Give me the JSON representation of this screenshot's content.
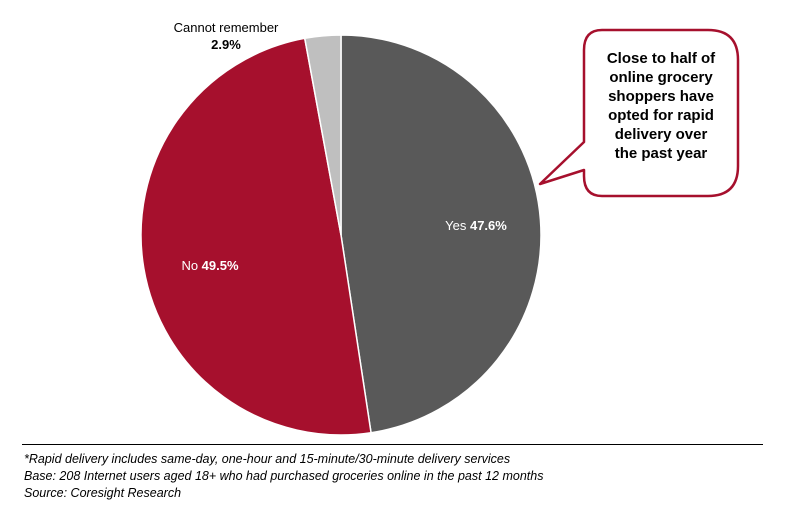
{
  "chart_data": {
    "type": "pie",
    "title": "",
    "slices": [
      {
        "name": "Yes",
        "value": 47.6,
        "value_label": "47.6%",
        "color": "#595959"
      },
      {
        "name": "No",
        "value": 49.5,
        "value_label": "49.5%",
        "color": "#A6102D"
      },
      {
        "name": "Cannot remember",
        "value": 2.9,
        "value_label": "2.9%",
        "color": "#BFBFBF"
      }
    ],
    "start": "12 o'clock",
    "direction": "clockwise"
  },
  "callout": {
    "lines": [
      "Close to half of",
      "online grocery",
      "shoppers have",
      "opted for rapid",
      "delivery over",
      "the past year"
    ],
    "border_color": "#A6102D"
  },
  "footnotes": {
    "definition": "*Rapid delivery includes same-day, one-hour and 15-minute/30-minute delivery services",
    "base": "Base: 208 Internet users aged 18+ who had purchased groceries online in the past 12 months",
    "source": "Source: Coresight Research"
  }
}
